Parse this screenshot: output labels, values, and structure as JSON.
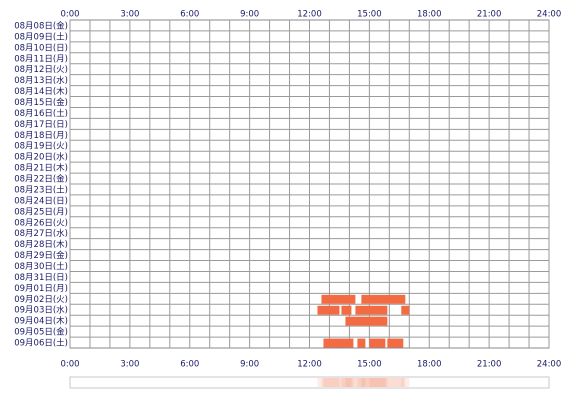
{
  "chart_data": {
    "type": "timeline",
    "categories": [
      "08月08日(金)",
      "08月09日(土)",
      "08月10日(日)",
      "08月11日(月)",
      "08月12日(火)",
      "08月13日(水)",
      "08月14日(木)",
      "08月15日(金)",
      "08月16日(土)",
      "08月17日(日)",
      "08月18日(月)",
      "08月19日(火)",
      "08月20日(水)",
      "08月21日(木)",
      "08月22日(金)",
      "08月23日(土)",
      "08月24日(日)",
      "08月25日(月)",
      "08月26日(火)",
      "08月27日(水)",
      "08月28日(木)",
      "08月29日(金)",
      "08月30日(土)",
      "08月31日(日)",
      "09月01日(月)",
      "09月02日(火)",
      "09月03日(水)",
      "09月04日(木)",
      "09月05日(金)",
      "09月06日(土)"
    ],
    "segments": [
      [],
      [],
      [],
      [],
      [],
      [],
      [],
      [],
      [],
      [],
      [],
      [],
      [],
      [],
      [],
      [],
      [],
      [],
      [],
      [],
      [],
      [],
      [],
      [],
      [],
      [
        [
          12.6,
          14.3
        ],
        [
          14.6,
          16.8
        ]
      ],
      [
        [
          12.4,
          13.5
        ],
        [
          13.6,
          14.1
        ],
        [
          14.3,
          15.9
        ],
        [
          16.6,
          17.0
        ]
      ],
      [
        [
          13.8,
          15.9
        ]
      ],
      [],
      [
        [
          12.7,
          14.2
        ],
        [
          14.4,
          14.8
        ],
        [
          15.0,
          15.8
        ],
        [
          15.9,
          16.7
        ]
      ]
    ],
    "color": "#f26b43",
    "xlim": [
      0,
      24
    ],
    "xticks": [
      {
        "value": 0,
        "label": "0:00"
      },
      {
        "value": 3,
        "label": "3:00"
      },
      {
        "value": 6,
        "label": "6:00"
      },
      {
        "value": 9,
        "label": "9:00"
      },
      {
        "value": 12,
        "label": "12:00"
      },
      {
        "value": 15,
        "label": "15:00"
      },
      {
        "value": 18,
        "label": "18:00"
      },
      {
        "value": 21,
        "label": "21:00"
      },
      {
        "value": 24,
        "label": "24:00"
      }
    ],
    "xgrid": [
      0,
      1,
      2,
      3,
      4,
      5,
      6,
      7,
      8,
      9,
      10,
      11,
      12,
      13,
      14,
      15,
      16,
      17,
      18,
      19,
      20,
      21,
      22,
      23,
      24
    ]
  }
}
